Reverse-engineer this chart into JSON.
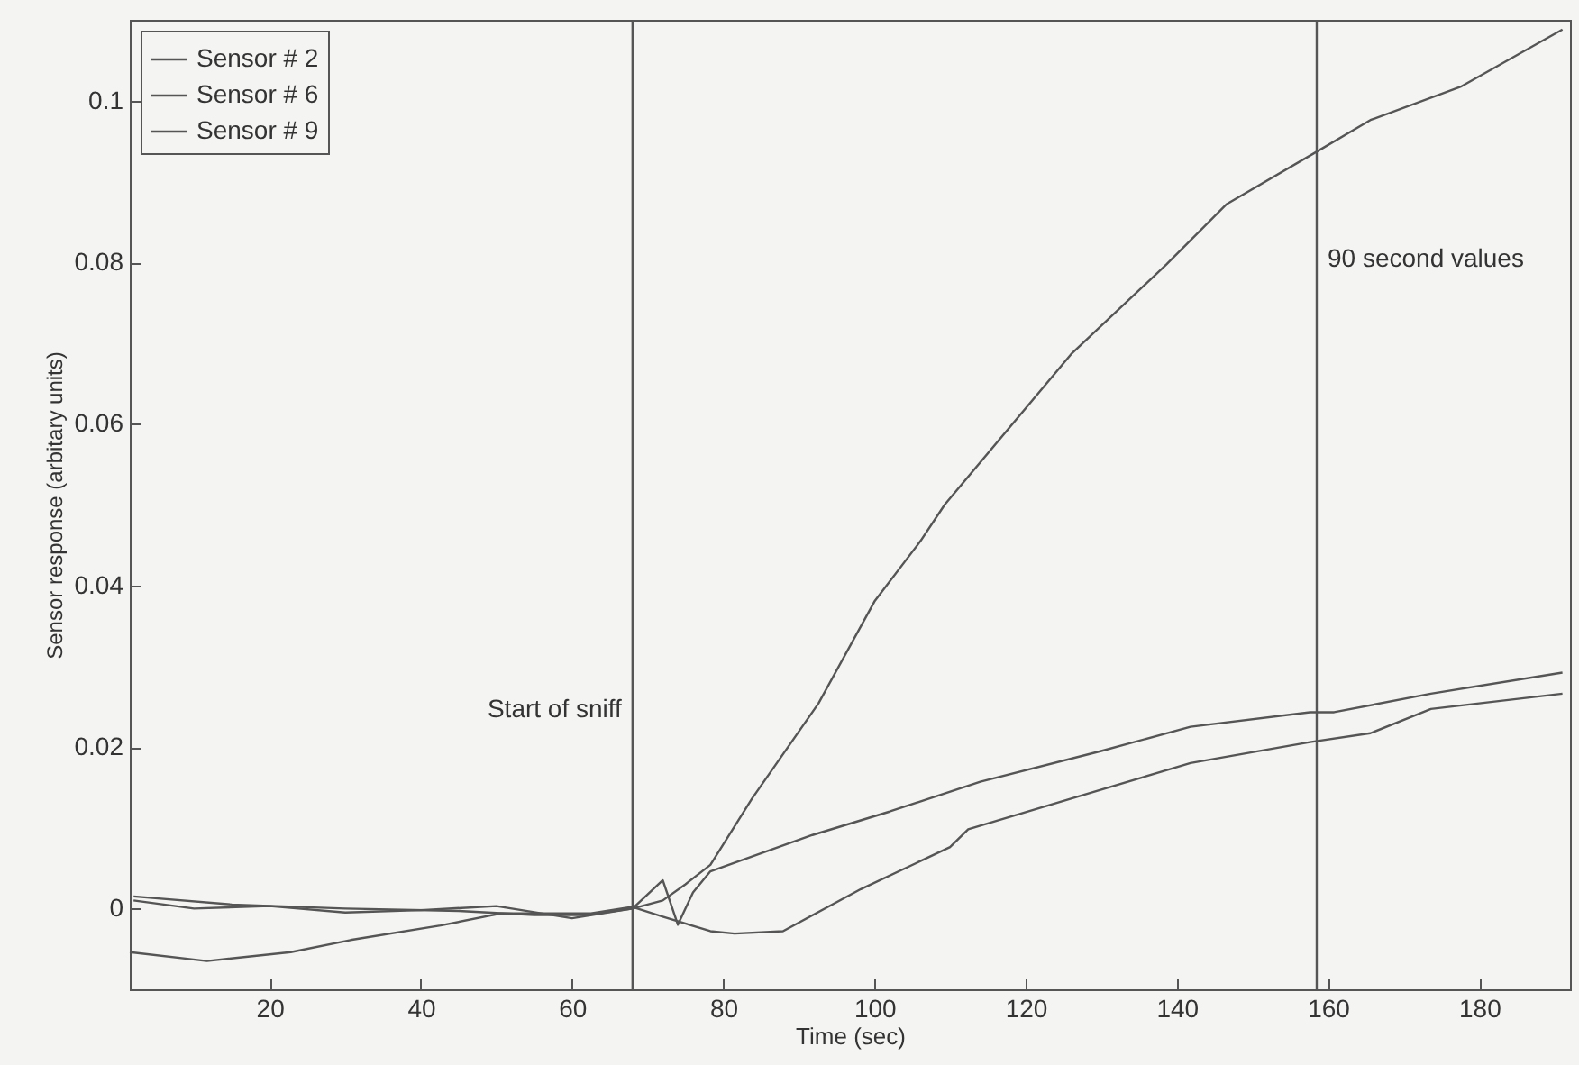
{
  "chart_data": {
    "type": "line",
    "xlabel": "Time (sec)",
    "ylabel": "Sensor response (arbitary units)",
    "xlim": [
      1.5,
      192
    ],
    "ylim": [
      -0.01,
      0.11
    ],
    "xticks": [
      20,
      40,
      60,
      80,
      100,
      120,
      140,
      160,
      180
    ],
    "yticks": [
      0,
      0.02,
      0.04,
      0.06,
      0.08,
      0.1
    ],
    "legend": "top left",
    "grid": false,
    "series": [
      {
        "name": "Sensor # 2",
        "color": "#555555",
        "x": [
          2,
          10,
          20,
          30,
          40,
          50,
          60,
          68,
          72,
          75,
          78.3,
          83.8,
          92.6,
          100,
          106.1,
          109.3,
          126,
          138.6,
          146.6,
          158.9,
          165.6,
          177.5,
          191
        ],
        "values": [
          0.001,
          0,
          0.0003,
          -0.0005,
          -0.0002,
          0.0003,
          -0.0012,
          0,
          0.001,
          0.003,
          0.0054,
          0.0136,
          0.0254,
          0.038,
          0.0455,
          0.05,
          0.0686,
          0.0797,
          0.0872,
          0.0939,
          0.0976,
          0.1017,
          0.1088
        ]
      },
      {
        "name": "Sensor # 6",
        "color": "#555555",
        "x": [
          2,
          15,
          30,
          45,
          55,
          62,
          68,
          72,
          74,
          76,
          78.3,
          91.8,
          102,
          114,
          130,
          141.8,
          157.6,
          160.8,
          173.6,
          191
        ],
        "values": [
          0.0015,
          0.0005,
          0,
          -0.0003,
          -0.0008,
          -0.0008,
          0,
          0.0035,
          -0.002,
          0.002,
          0.0046,
          0.0091,
          0.012,
          0.0157,
          0.0195,
          0.0225,
          0.0243,
          0.0243,
          0.0266,
          0.0292
        ]
      },
      {
        "name": "Sensor # 9",
        "color": "#555555",
        "x": [
          1.5,
          11.7,
          22.8,
          30.7,
          42.6,
          50.6,
          62.5,
          68,
          72,
          78.3,
          81.5,
          87.9,
          98.2,
          110,
          112.4,
          126,
          141.8,
          157.6,
          165.6,
          173.6,
          191
        ],
        "values": [
          -0.0054,
          -0.0065,
          -0.0054,
          -0.0039,
          -0.0021,
          -0.0006,
          -0.0006,
          0.0002,
          -0.001,
          -0.0028,
          -0.0031,
          -0.0028,
          0.0024,
          0.0076,
          0.0098,
          0.0136,
          0.018,
          0.0206,
          0.0217,
          0.0247,
          0.0266
        ]
      }
    ],
    "ref_lines": [
      {
        "axis": "x",
        "value": 68,
        "label": "Start of sniff"
      },
      {
        "axis": "x",
        "value": 158.5,
        "label": "90 second values"
      }
    ]
  }
}
